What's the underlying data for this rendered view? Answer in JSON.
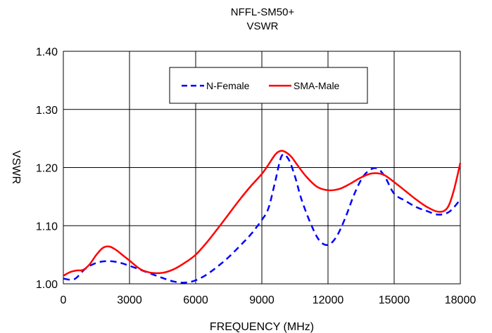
{
  "chart_data": {
    "type": "line",
    "title": "NFFL-SM50+",
    "subtitle": "VSWR",
    "xlabel": "FREQUENCY (MHz)",
    "ylabel": "VSWR",
    "xlim": [
      0,
      18000
    ],
    "ylim": [
      1.0,
      1.4
    ],
    "xticks": [
      0,
      3000,
      6000,
      9000,
      12000,
      15000,
      18000
    ],
    "xtick_labels": [
      "0",
      "3000",
      "6000",
      "9000",
      "12000",
      "15000",
      "18000"
    ],
    "yticks": [
      1.0,
      1.1,
      1.2,
      1.3,
      1.4
    ],
    "ytick_labels": [
      "1.00",
      "1.10",
      "1.20",
      "1.30",
      "1.40"
    ],
    "grid": true,
    "legend_position": "top-center",
    "series": [
      {
        "name": "N-Female",
        "color": "#0000ff",
        "dash": "dashed",
        "x": [
          10,
          500,
          1000,
          1500,
          2000,
          2500,
          3000,
          3500,
          4000,
          4500,
          5000,
          5500,
          6000,
          6500,
          7000,
          7500,
          8000,
          8500,
          9000,
          9300,
          9600,
          9900,
          10200,
          10500,
          10800,
          11200,
          11600,
          12000,
          12400,
          12800,
          13200,
          13600,
          14000,
          14300,
          14600,
          15000,
          15500,
          16000,
          16500,
          17000,
          17500,
          18000
        ],
        "y": [
          1.009,
          1.008,
          1.026,
          1.036,
          1.039,
          1.037,
          1.031,
          1.024,
          1.017,
          1.01,
          1.004,
          1.002,
          1.006,
          1.016,
          1.03,
          1.046,
          1.065,
          1.085,
          1.11,
          1.13,
          1.175,
          1.22,
          1.215,
          1.185,
          1.145,
          1.105,
          1.075,
          1.067,
          1.082,
          1.115,
          1.155,
          1.185,
          1.198,
          1.197,
          1.183,
          1.155,
          1.143,
          1.132,
          1.125,
          1.119,
          1.124,
          1.145
        ]
      },
      {
        "name": "SMA-Male",
        "color": "#ff0000",
        "dash": "solid",
        "x": [
          10,
          300,
          600,
          900,
          1200,
          1500,
          1800,
          2100,
          2400,
          2700,
          3000,
          3500,
          4000,
          4500,
          5000,
          5500,
          6000,
          6500,
          7000,
          7500,
          8000,
          8500,
          9000,
          9300,
          9600,
          9800,
          10000,
          10300,
          10600,
          11000,
          11500,
          12000,
          12500,
          13000,
          13500,
          14000,
          14500,
          15000,
          15500,
          16000,
          16500,
          17000,
          17400,
          17700,
          18000
        ],
        "y": [
          1.014,
          1.02,
          1.023,
          1.024,
          1.034,
          1.05,
          1.062,
          1.064,
          1.058,
          1.049,
          1.04,
          1.025,
          1.019,
          1.019,
          1.025,
          1.036,
          1.05,
          1.071,
          1.095,
          1.12,
          1.145,
          1.168,
          1.189,
          1.205,
          1.222,
          1.228,
          1.228,
          1.22,
          1.205,
          1.185,
          1.167,
          1.161,
          1.163,
          1.172,
          1.183,
          1.19,
          1.188,
          1.175,
          1.16,
          1.145,
          1.132,
          1.124,
          1.13,
          1.16,
          1.208
        ]
      }
    ]
  }
}
